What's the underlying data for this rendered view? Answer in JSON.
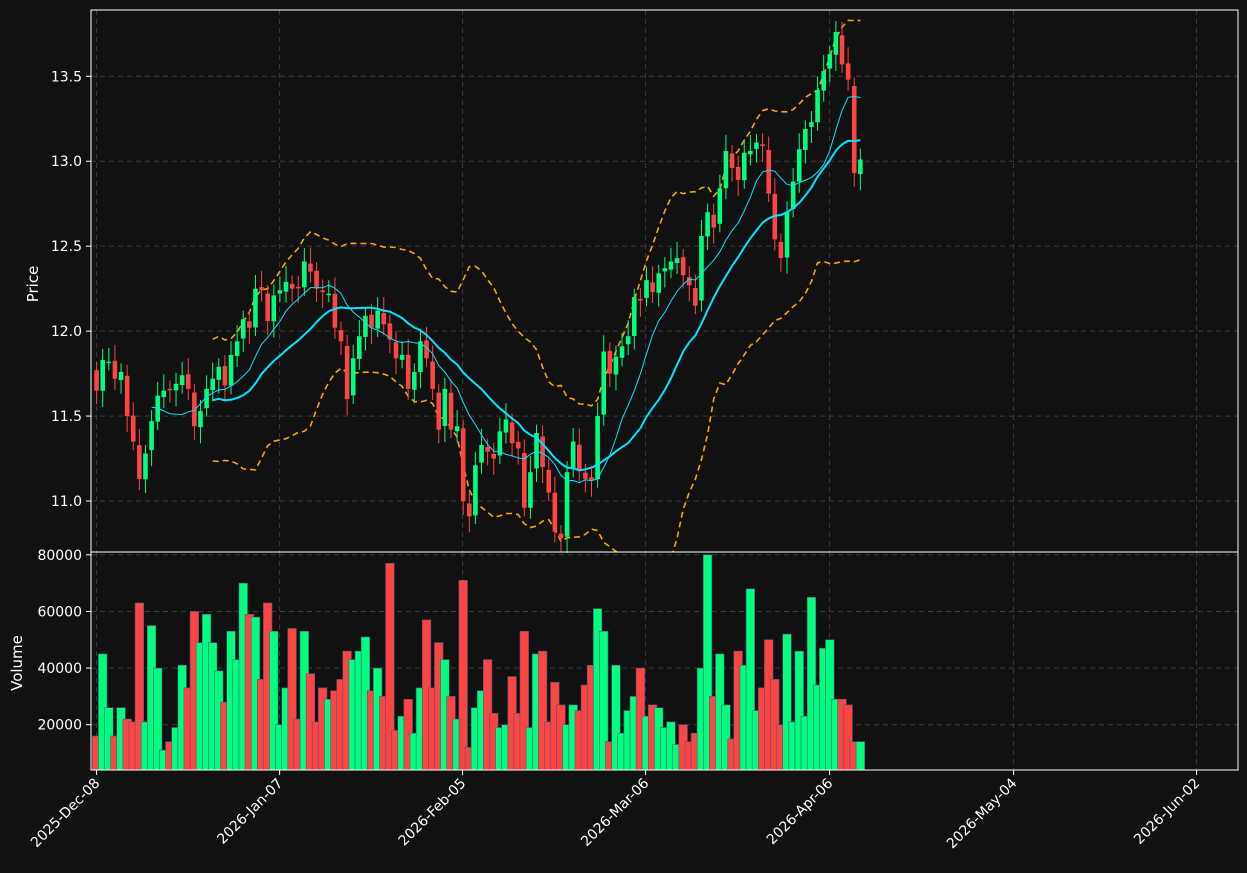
{
  "colors": {
    "background": "#111111",
    "up": "#00ff7f",
    "down": "#ff4444",
    "ma_fast": "#00e5ff",
    "ma_slow": "#00e5ff",
    "bands": "#ffa500",
    "grid": "#3a3a3a",
    "frame": "#ffffff"
  },
  "chart_data": {
    "type": "candlestick",
    "price_panel": {
      "ylabel": "Price",
      "ylim": [
        10.7,
        13.89
      ],
      "yticks": [
        "11.0",
        "11.5",
        "12.0",
        "12.5",
        "13.0",
        "13.5"
      ],
      "grid": true,
      "overlays": [
        "moving-average-fast",
        "moving-average-slow",
        "upper-band",
        "lower-band"
      ]
    },
    "volume_panel": {
      "ylabel": "Volume",
      "ylim": [
        4000,
        81000
      ],
      "yticks": [
        "20000",
        "40000",
        "60000",
        "80000"
      ],
      "grid": true
    },
    "xticks": [
      "2025-Dec-08",
      "2026-Jan-07",
      "2026-Feb-05",
      "2026-Mar-06",
      "2026-Apr-06",
      "2026-May-04",
      "2026-Jun-02"
    ],
    "closes": [
      11.65,
      11.83,
      11.82,
      11.72,
      11.76,
      11.5,
      11.35,
      11.13,
      11.28,
      11.47,
      11.62,
      11.65,
      11.66,
      11.69,
      11.74,
      11.66,
      11.44,
      11.53,
      11.66,
      11.72,
      11.79,
      11.68,
      11.86,
      11.94,
      12.07,
      12.02,
      12.25,
      12.24,
      12.06,
      12.21,
      12.24,
      12.29,
      12.25,
      12.26,
      12.41,
      12.35,
      12.25,
      12.23,
      12.22,
      12.02,
      11.94,
      11.6,
      11.84,
      11.97,
      12.09,
      12.02,
      12.12,
      12.04,
      11.95,
      11.84,
      11.86,
      11.66,
      11.76,
      11.94,
      11.84,
      11.66,
      11.42,
      11.66,
      11.42,
      11.44,
      11.0,
      10.91,
      11.21,
      11.33,
      11.29,
      11.25,
      11.41,
      11.48,
      11.34,
      11.31,
      10.96,
      11.17,
      11.4,
      11.2,
      11.05,
      10.82,
      10.78,
      11.17,
      11.35,
      11.18,
      11.13,
      11.12,
      11.5,
      11.88,
      11.75,
      11.85,
      11.91,
      11.97,
      12.2,
      12.18,
      12.3,
      12.23,
      12.34,
      12.37,
      12.41,
      12.43,
      12.33,
      12.27,
      12.15,
      12.56,
      12.7,
      12.61,
      12.84,
      13.06,
      12.96,
      12.89,
      13.05,
      13.06,
      13.11,
      13.09,
      12.81,
      12.54,
      12.43,
      12.7,
      12.88,
      13.07,
      13.19,
      13.23,
      13.42,
      13.53,
      13.63,
      13.76,
      13.57,
      13.48,
      12.93,
      13.01
    ],
    "volumes": [
      16000,
      45000,
      26000,
      16000,
      26000,
      22000,
      21000,
      63000,
      21000,
      55000,
      40000,
      11000,
      14000,
      19000,
      41000,
      33000,
      60000,
      49000,
      59000,
      49000,
      39000,
      28000,
      53000,
      43000,
      70000,
      59000,
      58000,
      36000,
      63000,
      53000,
      20000,
      33000,
      54000,
      22000,
      53000,
      38000,
      21000,
      33000,
      29000,
      32000,
      36000,
      46000,
      43000,
      46000,
      51000,
      32000,
      40000,
      30000,
      77000,
      18000,
      23000,
      29000,
      17000,
      33000,
      57000,
      33000,
      49000,
      43000,
      30000,
      22000,
      71000,
      12000,
      26000,
      32000,
      43000,
      24000,
      19000,
      20000,
      37000,
      24000,
      53000,
      19000,
      45000,
      46000,
      21000,
      35000,
      27000,
      20000,
      27000,
      25000,
      34000,
      41000,
      61000,
      53000,
      14000,
      41000,
      17000,
      25000,
      30000,
      40000,
      23000,
      27000,
      26000,
      19000,
      21000,
      13000,
      20000,
      14000,
      17000,
      40000,
      80000,
      30000,
      45000,
      27000,
      15000,
      46000,
      41000,
      68000,
      25000,
      33000,
      50000,
      36000,
      20000,
      52000,
      21000,
      46000,
      23000,
      65000,
      34000,
      47000,
      50000,
      29000,
      29000,
      27000,
      14000,
      14000
    ]
  }
}
